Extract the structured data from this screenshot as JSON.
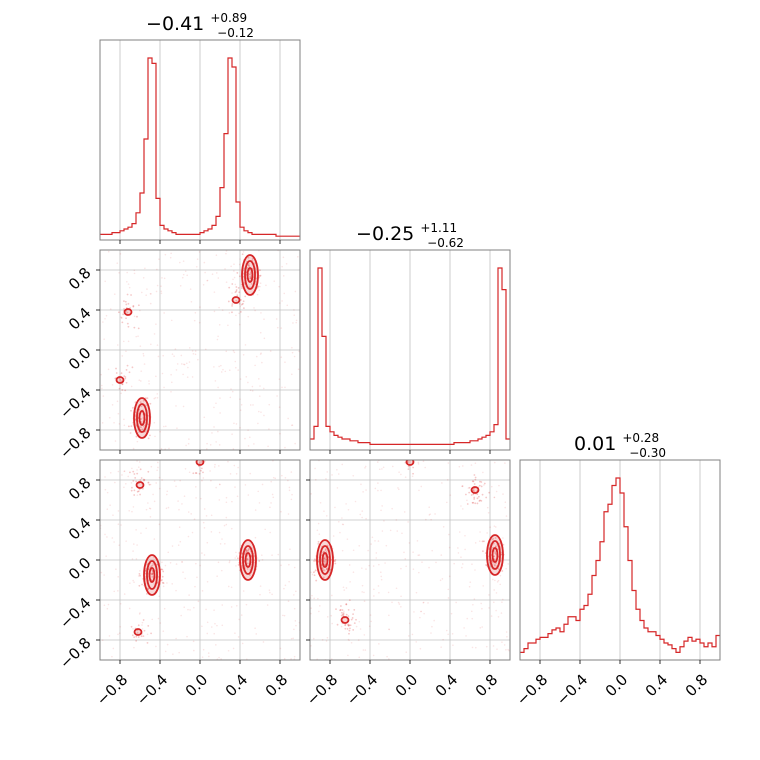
{
  "figure": {
    "accent_color": "#d62728",
    "grid_color": "#c0c0c0"
  },
  "titles": [
    {
      "value": "−0.41",
      "upper": "+0.89",
      "lower": "−0.12"
    },
    {
      "value": "−0.25",
      "upper": "+1.11",
      "lower": "−0.62"
    },
    {
      "value": "0.01",
      "upper": "+0.28",
      "lower": "−0.30"
    }
  ],
  "chart_data": {
    "type": "corner",
    "params": [
      "p0",
      "p1",
      "p2"
    ],
    "range": [
      -1.0,
      1.0
    ],
    "ticks": [
      -0.8,
      -0.4,
      0.0,
      0.4,
      0.8
    ],
    "tick_labels": [
      "−0.8",
      "−0.4",
      "0.0",
      "0.4",
      "0.8"
    ],
    "grid": true,
    "summaries": [
      {
        "median": -0.41,
        "plus": 0.89,
        "minus": 0.12
      },
      {
        "median": -0.25,
        "plus": 1.11,
        "minus": 0.62
      },
      {
        "median": 0.01,
        "plus": 0.28,
        "minus": 0.3
      }
    ],
    "histograms": [
      {
        "bin_edges_start": -1.0,
        "bin_width": 0.04,
        "counts": [
          2,
          2,
          2,
          3,
          3,
          4,
          5,
          6,
          8,
          14,
          25,
          55,
          100,
          97,
          22,
          7,
          5,
          4,
          3,
          2,
          2,
          2,
          2,
          2,
          2,
          3,
          4,
          5,
          7,
          12,
          28,
          58,
          100,
          95,
          20,
          6,
          4,
          3,
          2,
          2,
          2,
          2,
          2,
          2,
          1,
          1,
          1,
          1,
          1,
          1
        ]
      },
      {
        "bin_edges_start": -1.0,
        "bin_width": 0.04,
        "counts": [
          5,
          12,
          100,
          62,
          12,
          9,
          7,
          6,
          5,
          5,
          4,
          4,
          3,
          3,
          3,
          2,
          2,
          2,
          2,
          2,
          2,
          2,
          2,
          2,
          2,
          2,
          2,
          2,
          2,
          2,
          2,
          2,
          2,
          2,
          2,
          2,
          3,
          3,
          3,
          3,
          4,
          4,
          5,
          6,
          7,
          9,
          13,
          100,
          88,
          5
        ]
      },
      {
        "bin_edges_start": -1.0,
        "bin_width": 0.04,
        "counts": [
          3,
          5,
          8,
          8,
          10,
          11,
          11,
          13,
          15,
          16,
          14,
          18,
          22,
          22,
          20,
          26,
          28,
          34,
          44,
          52,
          62,
          78,
          82,
          92,
          96,
          88,
          70,
          52,
          36,
          26,
          20,
          16,
          14,
          14,
          12,
          10,
          8,
          7,
          5,
          3,
          6,
          9,
          11,
          9,
          10,
          8,
          6,
          8,
          6,
          12
        ]
      }
    ],
    "scatter_pairs": [
      {
        "x": "p0",
        "y": "p1",
        "regions": [
          {
            "x": -0.58,
            "y": -0.68,
            "weight": 1.0
          },
          {
            "x": 0.5,
            "y": 0.75,
            "weight": 1.0
          },
          {
            "x": -0.72,
            "y": 0.38,
            "weight": 0.3
          },
          {
            "x": -0.8,
            "y": -0.3,
            "weight": 0.25
          },
          {
            "x": 0.36,
            "y": 0.5,
            "weight": 0.25
          }
        ]
      },
      {
        "x": "p0",
        "y": "p2",
        "regions": [
          {
            "x": -0.48,
            "y": -0.15,
            "weight": 1.0
          },
          {
            "x": 0.48,
            "y": 0.0,
            "weight": 1.0
          },
          {
            "x": -0.6,
            "y": 0.75,
            "weight": 0.3
          },
          {
            "x": 0.0,
            "y": 0.98,
            "weight": 0.25
          },
          {
            "x": -0.62,
            "y": -0.72,
            "weight": 0.2
          }
        ]
      },
      {
        "x": "p1",
        "y": "p2",
        "regions": [
          {
            "x": -0.85,
            "y": 0.0,
            "weight": 1.0
          },
          {
            "x": 0.85,
            "y": 0.05,
            "weight": 1.0
          },
          {
            "x": -0.65,
            "y": -0.6,
            "weight": 0.5
          },
          {
            "x": 0.65,
            "y": 0.7,
            "weight": 0.5
          },
          {
            "x": 0.0,
            "y": 0.98,
            "weight": 0.2
          }
        ]
      }
    ]
  }
}
